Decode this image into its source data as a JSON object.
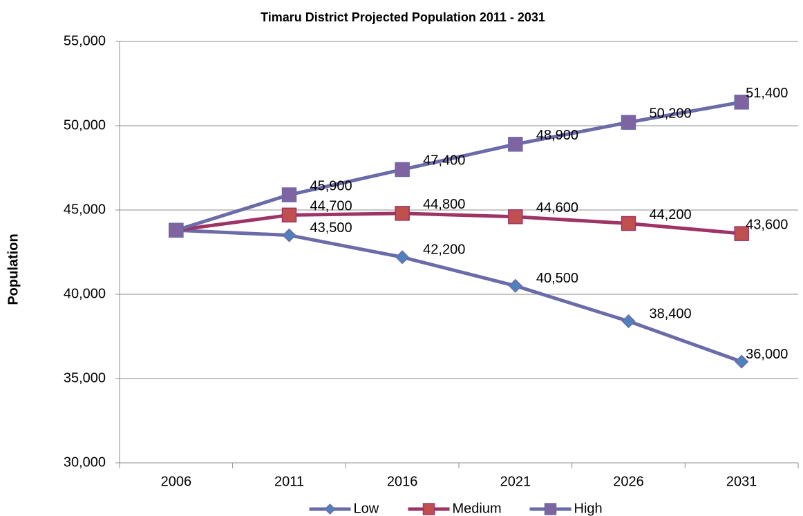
{
  "chart_data": {
    "type": "line",
    "title": "Timaru District  Projected Population 2011 - 2031",
    "y_label": "Population",
    "categories": [
      "2006",
      "2011",
      "2016",
      "2021",
      "2026",
      "2031"
    ],
    "series": [
      {
        "name": "Low",
        "color": "#6b6ba8",
        "marker_color": "#4f81bd",
        "marker": "diamond",
        "values": [
          43800,
          43500,
          42200,
          40500,
          38400,
          36000
        ],
        "value_labels": [
          null,
          "43,500",
          "42,200",
          "40,500",
          "38,400",
          "36,000"
        ]
      },
      {
        "name": "Medium",
        "color": "#9e3366",
        "marker_color": "#c0504d",
        "marker": "square",
        "values": [
          43800,
          44700,
          44800,
          44600,
          44200,
          43600
        ],
        "value_labels": [
          null,
          "44,700",
          "44,800",
          "44,600",
          "44,200",
          "43,600"
        ]
      },
      {
        "name": "High",
        "color": "#6b6ba8",
        "marker_color": "#8064a2",
        "marker": "square",
        "values": [
          43800,
          45900,
          47400,
          48900,
          50200,
          51400
        ],
        "value_labels": [
          null,
          "45,900",
          "47,400",
          "48,900",
          "50,200",
          "51,400"
        ]
      }
    ],
    "ylim": [
      30000,
      55000
    ],
    "yticks": [
      {
        "value": 30000,
        "label": "30,000"
      },
      {
        "value": 35000,
        "label": "35,000"
      },
      {
        "value": 40000,
        "label": "40,000"
      },
      {
        "value": 45000,
        "label": "45,000"
      },
      {
        "value": 50000,
        "label": "50,000"
      },
      {
        "value": 55000,
        "label": "55,000"
      }
    ],
    "grid": true,
    "legend": "bottom"
  }
}
